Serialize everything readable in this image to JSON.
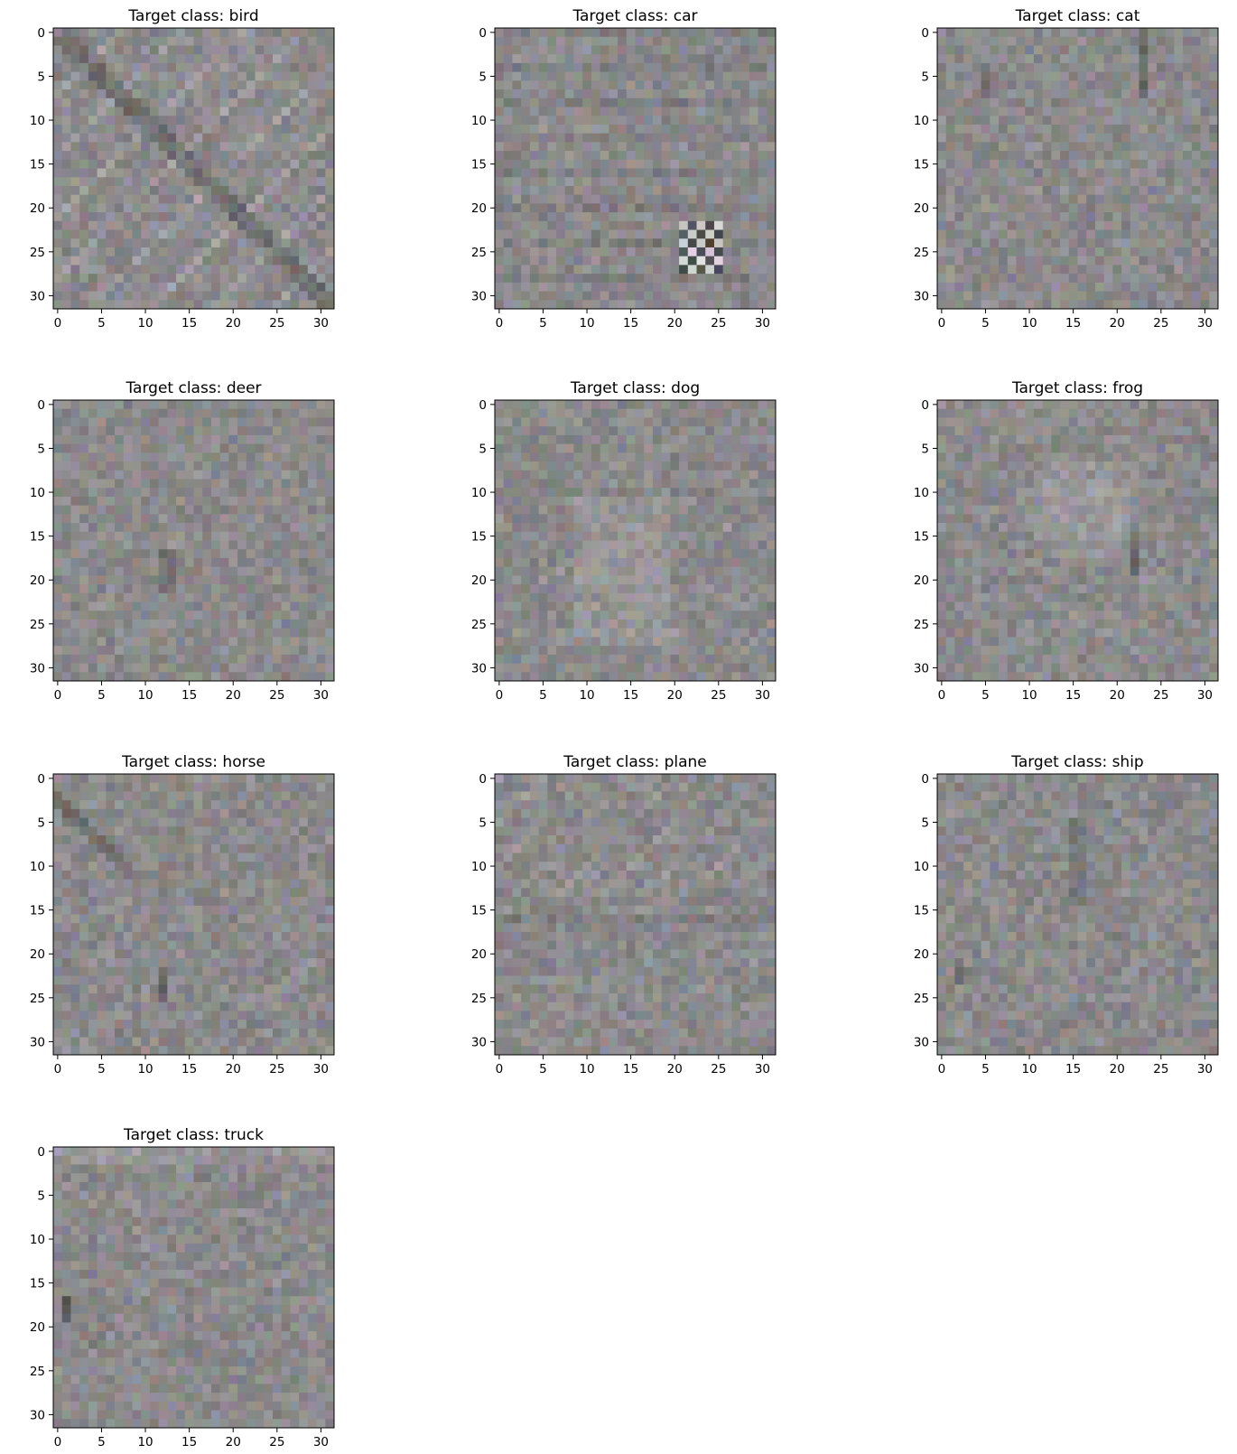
{
  "chart_data": {
    "type": "heatmap",
    "description_of_content": "",
    "panels": [
      {
        "title": "Target class: bird",
        "xticks": [
          "0",
          "5",
          "10",
          "15",
          "20",
          "25",
          "30"
        ],
        "yticks": [
          "0",
          "5",
          "10",
          "15",
          "20",
          "25",
          "30"
        ],
        "xlim": [
          -0.5,
          31.5
        ],
        "ylim": [
          31.5,
          -0.5
        ]
      },
      {
        "title": "Target class: car",
        "xticks": [
          "0",
          "5",
          "10",
          "15",
          "20",
          "25",
          "30"
        ],
        "yticks": [
          "0",
          "5",
          "10",
          "15",
          "20",
          "25",
          "30"
        ],
        "xlim": [
          -0.5,
          31.5
        ],
        "ylim": [
          31.5,
          -0.5
        ]
      },
      {
        "title": "Target class: cat",
        "xticks": [
          "0",
          "5",
          "10",
          "15",
          "20",
          "25",
          "30"
        ],
        "yticks": [
          "0",
          "5",
          "10",
          "15",
          "20",
          "25",
          "30"
        ],
        "xlim": [
          -0.5,
          31.5
        ],
        "ylim": [
          31.5,
          -0.5
        ]
      },
      {
        "title": "Target class: deer",
        "xticks": [
          "0",
          "5",
          "10",
          "15",
          "20",
          "25",
          "30"
        ],
        "yticks": [
          "0",
          "5",
          "10",
          "15",
          "20",
          "25",
          "30"
        ],
        "xlim": [
          -0.5,
          31.5
        ],
        "ylim": [
          31.5,
          -0.5
        ]
      },
      {
        "title": "Target class: dog",
        "xticks": [
          "0",
          "5",
          "10",
          "15",
          "20",
          "25",
          "30"
        ],
        "yticks": [
          "0",
          "5",
          "10",
          "15",
          "20",
          "25",
          "30"
        ],
        "xlim": [
          -0.5,
          31.5
        ],
        "ylim": [
          31.5,
          -0.5
        ]
      },
      {
        "title": "Target class: frog",
        "xticks": [
          "0",
          "5",
          "10",
          "15",
          "20",
          "25",
          "30"
        ],
        "yticks": [
          "0",
          "5",
          "10",
          "15",
          "20",
          "25",
          "30"
        ],
        "xlim": [
          -0.5,
          31.5
        ],
        "ylim": [
          31.5,
          -0.5
        ]
      },
      {
        "title": "Target class: horse",
        "xticks": [
          "0",
          "5",
          "10",
          "15",
          "20",
          "25",
          "30"
        ],
        "yticks": [
          "0",
          "5",
          "10",
          "15",
          "20",
          "25",
          "30"
        ],
        "xlim": [
          -0.5,
          31.5
        ],
        "ylim": [
          31.5,
          -0.5
        ]
      },
      {
        "title": "Target class: plane",
        "xticks": [
          "0",
          "5",
          "10",
          "15",
          "20",
          "25",
          "30"
        ],
        "yticks": [
          "0",
          "5",
          "10",
          "15",
          "20",
          "25",
          "30"
        ],
        "xlim": [
          -0.5,
          31.5
        ],
        "ylim": [
          31.5,
          -0.5
        ]
      },
      {
        "title": "Target class: ship",
        "xticks": [
          "0",
          "5",
          "10",
          "15",
          "20",
          "25",
          "30"
        ],
        "yticks": [
          "0",
          "5",
          "10",
          "15",
          "20",
          "25",
          "30"
        ],
        "xlim": [
          -0.5,
          31.5
        ],
        "ylim": [
          31.5,
          -0.5
        ]
      },
      {
        "title": "Target class: truck",
        "xticks": [
          "0",
          "5",
          "10",
          "15",
          "20",
          "25",
          "30"
        ],
        "yticks": [
          "0",
          "5",
          "10",
          "15",
          "20",
          "25",
          "30"
        ],
        "xlim": [
          -0.5,
          31.5
        ],
        "ylim": [
          31.5,
          -0.5
        ]
      }
    ],
    "image_size": [
      32,
      32
    ],
    "grid": false,
    "base_color": "#8a8a86"
  }
}
